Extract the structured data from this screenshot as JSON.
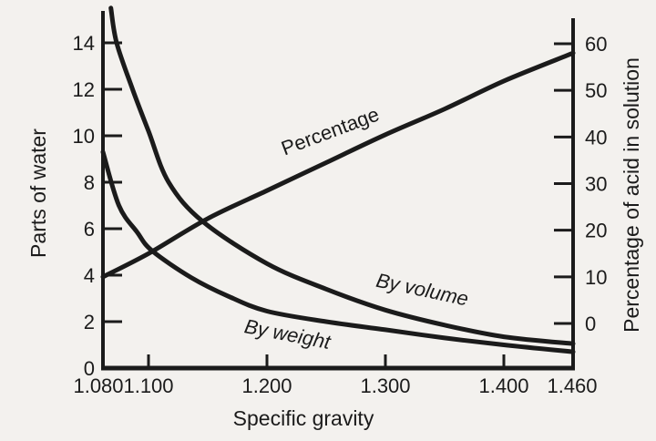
{
  "figure": {
    "background": "#f3f1ee",
    "ink": "#1b1b1b"
  },
  "chart_data": {
    "type": "line",
    "title": "",
    "grid": false,
    "legend": "inline-curve-labels",
    "x_axis": {
      "label": "Specific gravity",
      "tick_labels": [
        "1.080",
        "1.100",
        "1.200",
        "1.300",
        "1.400",
        "1.460"
      ],
      "tick_values": [
        1.08,
        1.1,
        1.2,
        1.3,
        1.4,
        1.46
      ],
      "range": [
        1.08,
        1.46
      ]
    },
    "y_axis_left": {
      "label": "Parts of water",
      "tick_labels": [
        "0",
        "2",
        "4",
        "6",
        "8",
        "10",
        "12",
        "14"
      ],
      "tick_values": [
        0,
        2,
        4,
        6,
        8,
        10,
        12,
        14
      ],
      "range": [
        0,
        14
      ]
    },
    "y_axis_right": {
      "label": "Percentage of acid in solution",
      "tick_labels": [
        "0",
        "10",
        "20",
        "30",
        "40",
        "50",
        "60"
      ],
      "tick_values": [
        0,
        10,
        20,
        30,
        40,
        50,
        60
      ],
      "range": [
        0,
        60
      ]
    },
    "series": [
      {
        "name": "Percentage",
        "axis": "right",
        "points": [
          [
            1.08,
            10
          ],
          [
            1.1,
            15
          ],
          [
            1.15,
            22.5
          ],
          [
            1.2,
            28.5
          ],
          [
            1.25,
            34.5
          ],
          [
            1.3,
            40.5
          ],
          [
            1.35,
            46
          ],
          [
            1.4,
            52
          ],
          [
            1.46,
            58
          ]
        ]
      },
      {
        "name": "By volume",
        "axis": "left",
        "points": [
          [
            1.0835,
            15.5
          ],
          [
            1.086,
            14
          ],
          [
            1.093,
            12
          ],
          [
            1.1,
            10.2
          ],
          [
            1.117,
            8
          ],
          [
            1.146,
            6.3
          ],
          [
            1.2,
            4.5
          ],
          [
            1.25,
            3.4
          ],
          [
            1.3,
            2.5
          ],
          [
            1.35,
            1.85
          ],
          [
            1.4,
            1.35
          ],
          [
            1.46,
            1.05
          ]
        ]
      },
      {
        "name": "By weight",
        "axis": "left",
        "points": [
          [
            1.08,
            9.3
          ],
          [
            1.087,
            7.0
          ],
          [
            1.095,
            5.85
          ],
          [
            1.103,
            5.05
          ],
          [
            1.136,
            3.9
          ],
          [
            1.167,
            3.1
          ],
          [
            1.2,
            2.45
          ],
          [
            1.25,
            2.0
          ],
          [
            1.3,
            1.65
          ],
          [
            1.35,
            1.3
          ],
          [
            1.4,
            1.0
          ],
          [
            1.46,
            0.7
          ]
        ]
      }
    ]
  }
}
